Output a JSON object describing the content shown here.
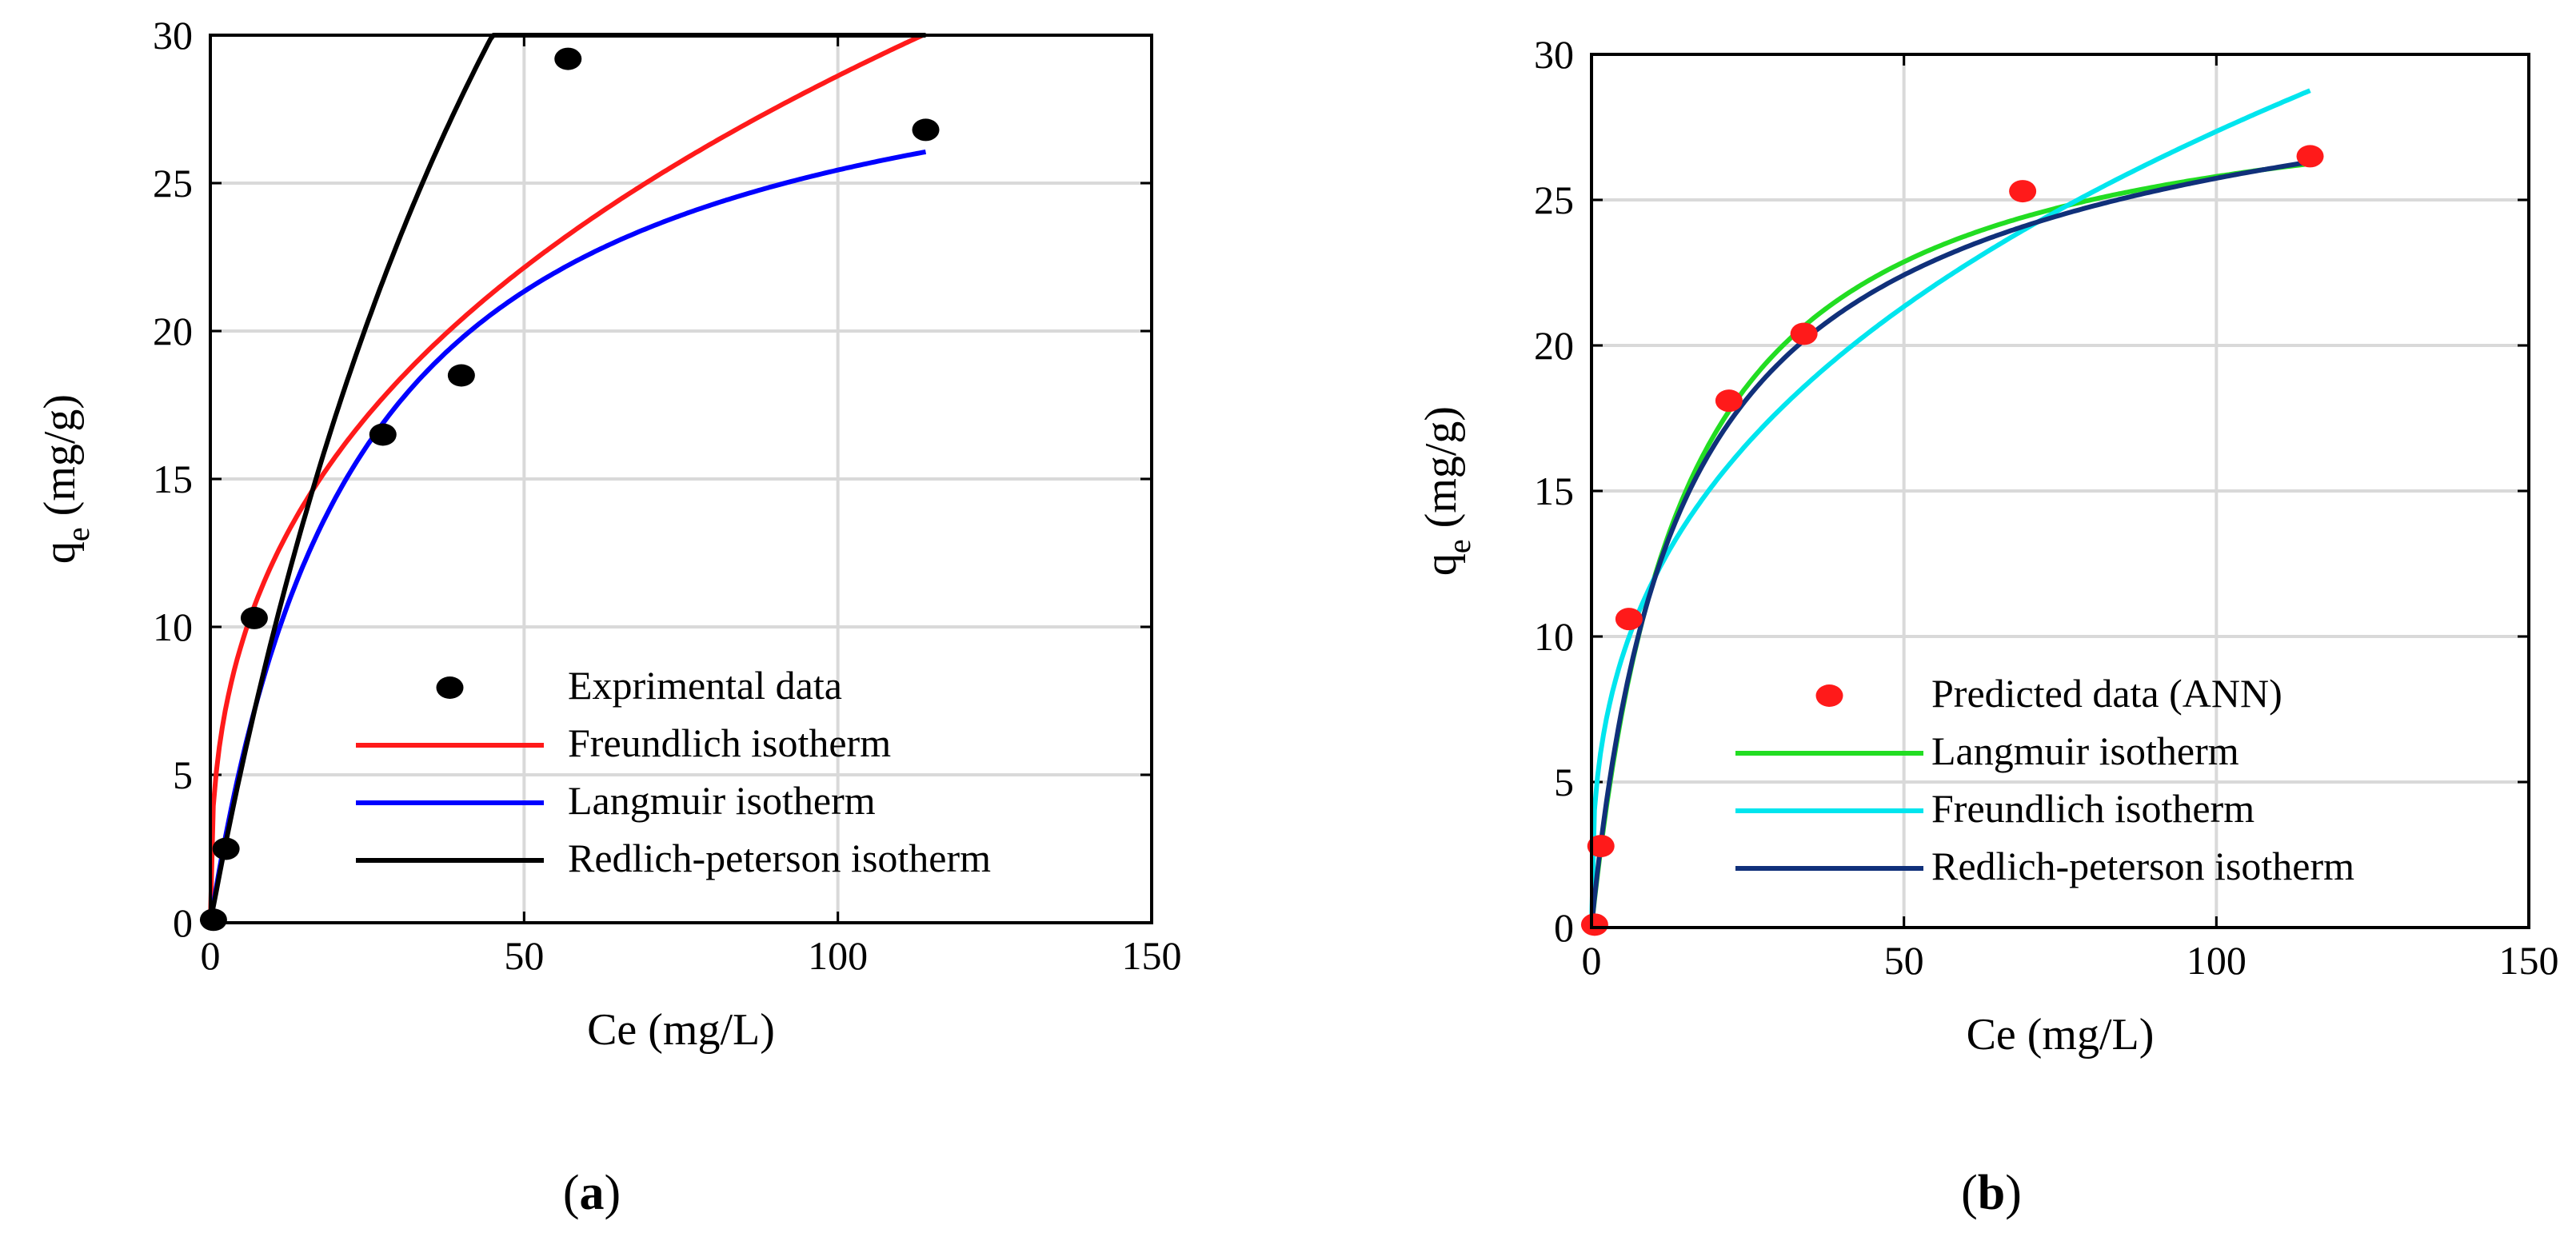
{
  "chart_data": [
    {
      "type": "line",
      "panel_label": "(a)",
      "xlabel": "Ce (mg/L)",
      "ylabel": "q",
      "ylabel_sub": "e",
      "ylabel_units": " (mg/g)",
      "xlim": [
        0,
        150
      ],
      "ylim": [
        0,
        30
      ],
      "xticks": [
        0,
        50,
        100,
        150
      ],
      "yticks": [
        0,
        5,
        10,
        15,
        20,
        25,
        30
      ],
      "grid": true,
      "legend_position": "bottom-right",
      "points": {
        "name": "Exprimental data",
        "color": "#000000",
        "x": [
          0.5,
          2.5,
          7,
          27.5,
          40,
          57,
          114
        ],
        "y": [
          0.1,
          2.5,
          10.3,
          16.5,
          18.5,
          29.2,
          26.8
        ]
      },
      "series": [
        {
          "name": "Freundlich isotherm",
          "color": "#ff1a1a",
          "model": "freundlich",
          "params": {
            "K": 5.2,
            "n": 2.7
          },
          "xmax": 114
        },
        {
          "name": "Langmuir isotherm",
          "color": "#0000ff",
          "model": "langmuir",
          "params": {
            "Q": 31.5,
            "b": 0.042
          },
          "xmax": 114
        },
        {
          "name": "Redlich-peterson isotherm",
          "color": "#000000",
          "model": "redlich",
          "params": {
            "K": 1.15,
            "a": 0.021,
            "g": 0.93
          },
          "xmax": 114
        }
      ]
    },
    {
      "type": "line",
      "panel_label": "(b)",
      "xlabel": "Ce (mg/L)",
      "ylabel": "q",
      "ylabel_sub": "e",
      "ylabel_units": " (mg/g)",
      "xlim": [
        0,
        150
      ],
      "ylim": [
        0,
        30
      ],
      "xticks": [
        0,
        50,
        100,
        150
      ],
      "yticks": [
        0,
        5,
        10,
        15,
        20,
        25,
        30
      ],
      "grid": true,
      "legend_position": "bottom-right",
      "points": {
        "name": "Predicted data (ANN)",
        "color": "#ff1a1a",
        "x": [
          0.5,
          1.5,
          6,
          22,
          34,
          69,
          115
        ],
        "y": [
          0.1,
          2.8,
          10.6,
          18.1,
          20.4,
          25.3,
          26.5
        ]
      },
      "series": [
        {
          "name": "Langmuir isotherm",
          "color": "#22dd22",
          "model": "langmuir",
          "params": {
            "Q": 29.6,
            "b": 0.068
          },
          "xmax": 115
        },
        {
          "name": "Freundlich isotherm",
          "color": "#00e5ee",
          "model": "freundlich",
          "params": {
            "K": 5.25,
            "n": 2.79
          },
          "xmax": 115
        },
        {
          "name": "Redlich-peterson isotherm",
          "color": "#10307a",
          "model": "redlich",
          "params": {
            "K": 2.2,
            "a": 0.095,
            "g": 0.95
          },
          "xmax": 115
        }
      ]
    }
  ]
}
